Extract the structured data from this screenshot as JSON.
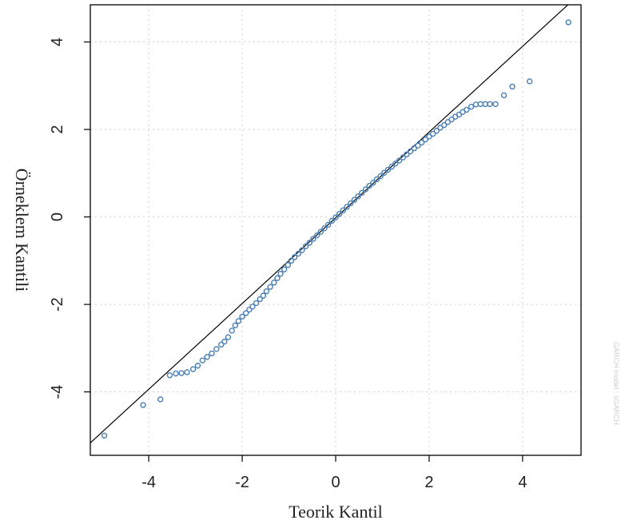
{
  "chart_data": {
    "type": "scatter",
    "title": "",
    "xlabel": "Teorik Kantil",
    "ylabel": "Örneklem Kantili",
    "xlim": [
      -5.25,
      5.25
    ],
    "ylim": [
      -5.45,
      4.85
    ],
    "x_ticks": [
      -4,
      -2,
      0,
      2,
      4
    ],
    "y_ticks": [
      -4,
      -2,
      0,
      2,
      4
    ],
    "x_tick_labels": [
      "-4",
      "-2",
      "0",
      "2",
      "4"
    ],
    "y_tick_labels": [
      "-4",
      "-2",
      "0",
      "2",
      "4"
    ],
    "grid": true,
    "reference_line": {
      "slope": 0.98,
      "intercept": -0.02
    },
    "marker_color": "#4a7fb5",
    "line_color": "#000000",
    "grid_color": "#cfcfcf",
    "watermark": "GARCH model : sGARCH",
    "points": [
      [
        -4.95,
        -5.0
      ],
      [
        -4.12,
        -4.3
      ],
      [
        -3.75,
        -4.17
      ],
      [
        -3.55,
        -3.62
      ],
      [
        -3.42,
        -3.58
      ],
      [
        -3.3,
        -3.57
      ],
      [
        -3.18,
        -3.55
      ],
      [
        -3.05,
        -3.48
      ],
      [
        -2.95,
        -3.4
      ],
      [
        -2.85,
        -3.28
      ],
      [
        -2.75,
        -3.2
      ],
      [
        -2.65,
        -3.12
      ],
      [
        -2.55,
        -3.02
      ],
      [
        -2.45,
        -2.92
      ],
      [
        -2.38,
        -2.85
      ],
      [
        -2.3,
        -2.75
      ],
      [
        -2.22,
        -2.6
      ],
      [
        -2.15,
        -2.48
      ],
      [
        -2.08,
        -2.38
      ],
      [
        -2.0,
        -2.28
      ],
      [
        -1.92,
        -2.2
      ],
      [
        -1.85,
        -2.12
      ],
      [
        -1.78,
        -2.05
      ],
      [
        -1.7,
        -1.97
      ],
      [
        -1.62,
        -1.88
      ],
      [
        -1.55,
        -1.8
      ],
      [
        -1.48,
        -1.7
      ],
      [
        -1.4,
        -1.6
      ],
      [
        -1.32,
        -1.5
      ],
      [
        -1.25,
        -1.4
      ],
      [
        -1.18,
        -1.3
      ],
      [
        -1.1,
        -1.2
      ],
      [
        -1.02,
        -1.1
      ],
      [
        -0.95,
        -1.0
      ],
      [
        -0.88,
        -0.92
      ],
      [
        -0.8,
        -0.84
      ],
      [
        -0.72,
        -0.76
      ],
      [
        -0.64,
        -0.67
      ],
      [
        -0.56,
        -0.59
      ],
      [
        -0.48,
        -0.5
      ],
      [
        -0.4,
        -0.42
      ],
      [
        -0.32,
        -0.34
      ],
      [
        -0.24,
        -0.26
      ],
      [
        -0.16,
        -0.18
      ],
      [
        -0.08,
        -0.09
      ],
      [
        0.0,
        -0.01
      ],
      [
        0.08,
        0.07
      ],
      [
        0.16,
        0.15
      ],
      [
        0.24,
        0.23
      ],
      [
        0.32,
        0.31
      ],
      [
        0.4,
        0.39
      ],
      [
        0.48,
        0.47
      ],
      [
        0.56,
        0.55
      ],
      [
        0.64,
        0.63
      ],
      [
        0.72,
        0.71
      ],
      [
        0.8,
        0.78
      ],
      [
        0.88,
        0.86
      ],
      [
        0.96,
        0.93
      ],
      [
        1.04,
        1.01
      ],
      [
        1.12,
        1.08
      ],
      [
        1.2,
        1.15
      ],
      [
        1.28,
        1.22
      ],
      [
        1.36,
        1.29
      ],
      [
        1.44,
        1.36
      ],
      [
        1.52,
        1.43
      ],
      [
        1.6,
        1.5
      ],
      [
        1.68,
        1.57
      ],
      [
        1.76,
        1.63
      ],
      [
        1.84,
        1.7
      ],
      [
        1.92,
        1.77
      ],
      [
        2.0,
        1.84
      ],
      [
        2.08,
        1.9
      ],
      [
        2.16,
        1.97
      ],
      [
        2.24,
        2.04
      ],
      [
        2.32,
        2.1
      ],
      [
        2.4,
        2.17
      ],
      [
        2.48,
        2.23
      ],
      [
        2.56,
        2.29
      ],
      [
        2.64,
        2.34
      ],
      [
        2.72,
        2.4
      ],
      [
        2.8,
        2.45
      ],
      [
        2.9,
        2.52
      ],
      [
        3.0,
        2.57
      ],
      [
        3.1,
        2.58
      ],
      [
        3.2,
        2.58
      ],
      [
        3.3,
        2.58
      ],
      [
        3.42,
        2.58
      ],
      [
        3.6,
        2.78
      ],
      [
        3.78,
        2.98
      ],
      [
        4.15,
        3.1
      ],
      [
        4.98,
        4.45
      ]
    ]
  }
}
